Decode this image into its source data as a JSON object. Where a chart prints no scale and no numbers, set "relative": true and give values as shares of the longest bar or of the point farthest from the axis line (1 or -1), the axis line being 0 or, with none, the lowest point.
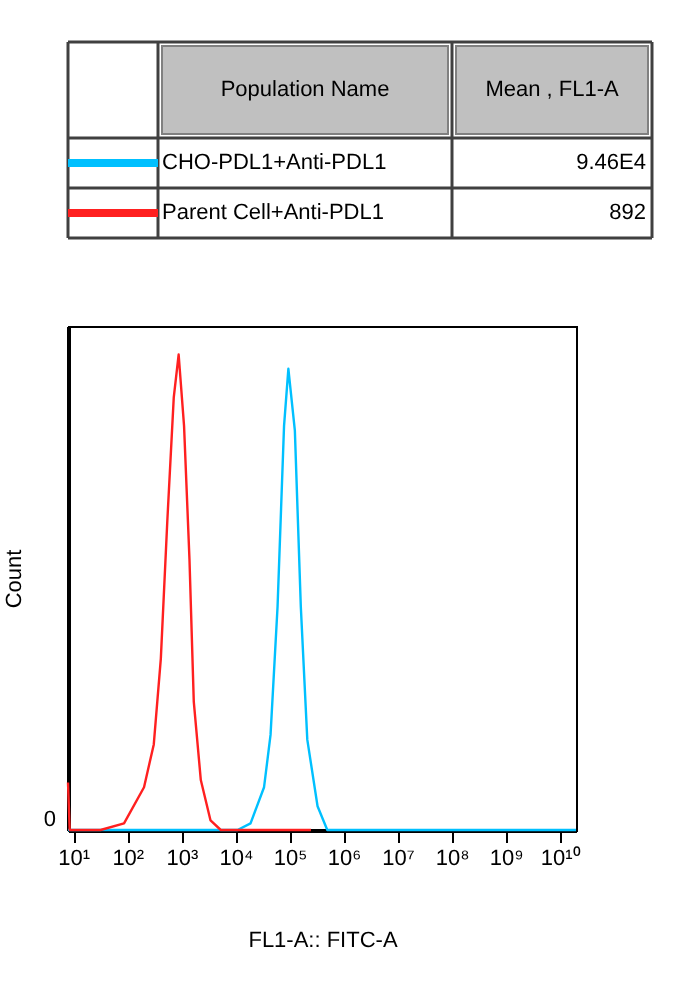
{
  "chart_data": {
    "type": "line",
    "relative": true,
    "legend": "top",
    "legend_title": "Population Name",
    "xlabel": "FL1-A:: FITC-A",
    "ylabel": "Count",
    "log": "x",
    "grid": false,
    "marker": "none",
    "line_style": "solid",
    "annotations": [
      "Mean , FL1-A",
      "9.46E4",
      "892",
      "0"
    ],
    "xlim": [
      8,
      20000000000
    ],
    "xticks": [
      {
        "value": 10,
        "label": "10¹"
      },
      {
        "value": 100,
        "label": "10²"
      },
      {
        "value": 1000,
        "label": "10³"
      },
      {
        "value": 10000,
        "label": "10⁴"
      },
      {
        "value": 100000,
        "label": "10⁵"
      },
      {
        "value": 1000000,
        "label": "10⁶"
      },
      {
        "value": 10000000,
        "label": "10⁷"
      },
      {
        "value": 100000000,
        "label": "10⁸"
      },
      {
        "value": 1000000000,
        "label": "10⁹"
      },
      {
        "value": 10000000000,
        "label": "10¹⁰"
      }
    ],
    "series": [
      {
        "name": "CHO-PDL1+Anti-PDL1",
        "color": "#00c0ff",
        "x": [
          8,
          10965,
          19055,
          33884,
          44668,
          60256,
          79433,
          95499,
          125893,
          162181,
          213796,
          331131,
          501187,
          20000000000
        ],
        "values": [
          0,
          0,
          0.014,
          0.09,
          0.2,
          0.47,
          0.85,
          0.97,
          0.84,
          0.47,
          0.19,
          0.05,
          0,
          0
        ]
      },
      {
        "name": "Parent Cell+Anti-PDL1",
        "color": "#ff2020",
        "x": [
          8,
          8.6,
          32,
          87,
          204,
          309,
          417,
          550,
          724,
          891,
          1122,
          1413,
          1698,
          2291,
          3467,
          5370,
          250000
        ],
        "values": [
          0.1,
          0,
          0,
          0.014,
          0.09,
          0.18,
          0.36,
          0.65,
          0.91,
          1,
          0.85,
          0.57,
          0.27,
          0.105,
          0.02,
          0,
          0
        ]
      }
    ]
  }
}
